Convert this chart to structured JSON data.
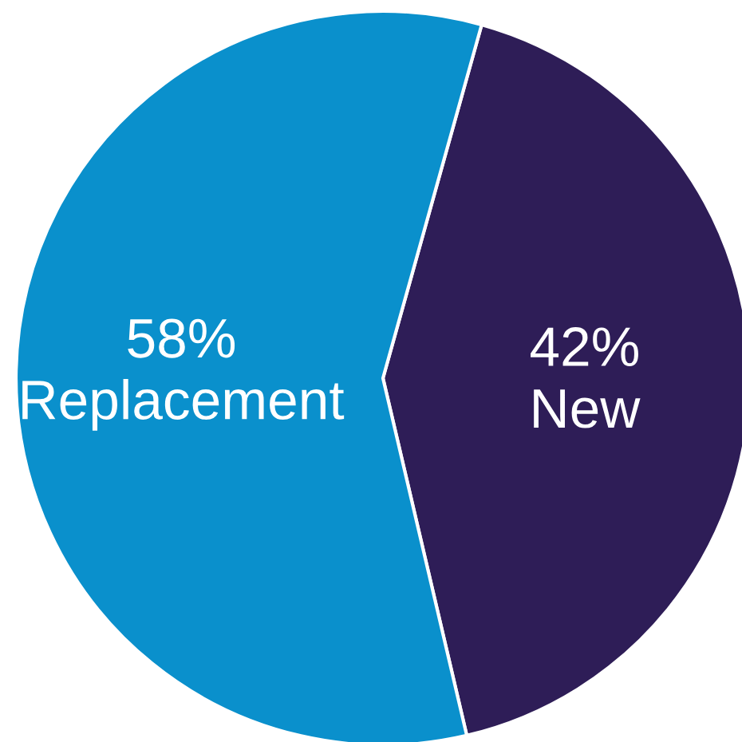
{
  "chart_data": {
    "type": "pie",
    "categories": [
      "New",
      "Replacement"
    ],
    "values": [
      42,
      58
    ],
    "value_labels": [
      "42%",
      "58%"
    ],
    "colors": [
      "#2e1d57",
      "#0a90cc"
    ]
  }
}
